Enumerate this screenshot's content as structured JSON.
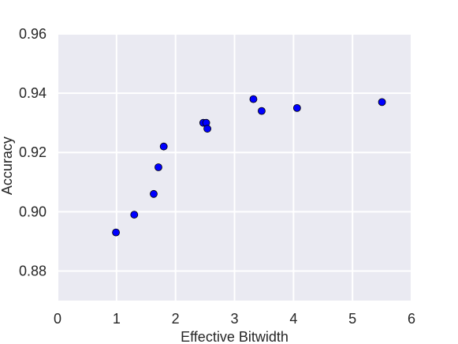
{
  "chart_data": {
    "type": "scatter",
    "title": "",
    "xlabel": "Effective Bitwidth",
    "ylabel": "Accuracy",
    "xlim": [
      0,
      6
    ],
    "ylim": [
      0.87,
      0.96
    ],
    "x_ticks": [
      0,
      1,
      2,
      3,
      4,
      5,
      6
    ],
    "x_tick_labels": [
      "0",
      "1",
      "2",
      "3",
      "4",
      "5",
      "6"
    ],
    "y_ticks": [
      0.88,
      0.9,
      0.92,
      0.94,
      0.96
    ],
    "y_tick_labels": [
      "0.88",
      "0.90",
      "0.92",
      "0.94",
      "0.96"
    ],
    "grid": true,
    "legend": "none",
    "colors": {
      "plot_background": "#eaeaf2",
      "grid": "#ffffff",
      "marker": "#0000ff",
      "marker_edge": "#000000",
      "text": "#262626"
    },
    "series": [
      {
        "points": [
          {
            "x": 0.99,
            "y": 0.893
          },
          {
            "x": 1.3,
            "y": 0.899
          },
          {
            "x": 1.63,
            "y": 0.906
          },
          {
            "x": 1.71,
            "y": 0.915
          },
          {
            "x": 1.8,
            "y": 0.922
          },
          {
            "x": 2.47,
            "y": 0.93
          },
          {
            "x": 2.52,
            "y": 0.93
          },
          {
            "x": 2.54,
            "y": 0.928
          },
          {
            "x": 3.32,
            "y": 0.938
          },
          {
            "x": 3.46,
            "y": 0.934
          },
          {
            "x": 4.06,
            "y": 0.935
          },
          {
            "x": 5.5,
            "y": 0.937
          }
        ]
      }
    ]
  }
}
